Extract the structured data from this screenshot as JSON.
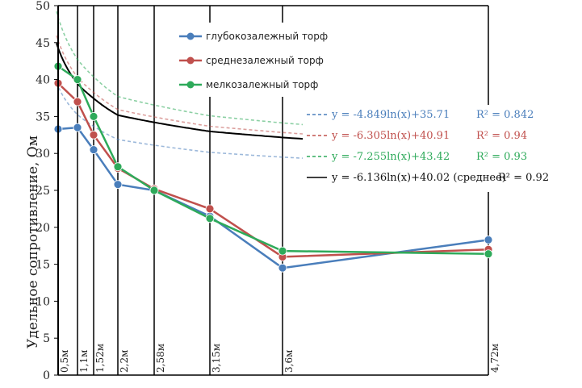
{
  "chart_data": {
    "type": "line",
    "ylabel": "Удельное сопротивление, Ом",
    "xlabel": "",
    "ylim": [
      0,
      50
    ],
    "yticks": [
      "0",
      "5",
      "10",
      "15",
      "20",
      "25",
      "30",
      "35",
      "40",
      "45",
      "50"
    ],
    "categories": [
      "0,5м",
      "1,1м",
      "1,52м",
      "2,2м",
      "2,58м",
      "3,15м",
      "3,6м",
      "4,72м"
    ],
    "grid": "vertical lines at each category, horizontal line at 50",
    "legend_position": "top-center",
    "series": [
      {
        "name": "глубокозалежный торф",
        "color": "#4a7ebb",
        "values": [
          33.3,
          33.5,
          30.5,
          25.8,
          25.0,
          21.5,
          14.5,
          18.3
        ]
      },
      {
        "name": "среднезалежный торф",
        "color": "#c0504d",
        "values": [
          39.5,
          37.0,
          32.5,
          28.0,
          25.2,
          22.5,
          16.0,
          17.0
        ]
      },
      {
        "name": "мелкозалежный торф",
        "color": "#2eaa5a",
        "values": [
          41.8,
          40.0,
          35.0,
          28.2,
          25.0,
          21.2,
          16.8,
          16.4
        ]
      }
    ],
    "trendlines": [
      {
        "label": "y = -4.849ln(x)+35.71",
        "r2": "R² = 0.842",
        "color": "#4a7ebb",
        "style": "dashed",
        "a": -4.849,
        "b": 35.71
      },
      {
        "label": "y = -6.305ln(x)+40.91",
        "r2": "R² = 0.94",
        "color": "#c0504d",
        "style": "dashed",
        "a": -6.305,
        "b": 40.91
      },
      {
        "label": "y = -7.255ln(x)+43.42",
        "r2": "R² = 0.93",
        "color": "#2eaa5a",
        "style": "dashed",
        "a": -7.255,
        "b": 43.42
      },
      {
        "label": "y = -6.136ln(x)+40.02  (среднее)",
        "r2": "R² = 0.92",
        "color": "#000000",
        "style": "solid",
        "a": -6.136,
        "b": 40.02
      }
    ]
  }
}
